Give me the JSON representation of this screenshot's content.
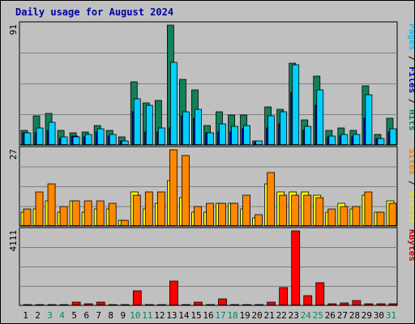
{
  "chart_data": {
    "type": "bar",
    "title": "Daily usage for August 2024",
    "days": [
      "1",
      "2",
      "3",
      "4",
      "5",
      "6",
      "7",
      "8",
      "9",
      "10",
      "11",
      "12",
      "13",
      "14",
      "15",
      "16",
      "17",
      "18",
      "19",
      "20",
      "21",
      "22",
      "23",
      "24",
      "25",
      "26",
      "27",
      "28",
      "29",
      "30",
      "31"
    ],
    "weekend_days": [
      "3",
      "4",
      "10",
      "11",
      "17",
      "18",
      "24",
      "25",
      "31"
    ],
    "panels": [
      {
        "id": "pages_files_hits",
        "max_label": "91",
        "ymax": 91,
        "right_label": [
          {
            "text": "Pages",
            "color": "#00c8ff"
          },
          {
            "text": " / ",
            "color": "#000000"
          },
          {
            "text": "Files",
            "color": "#0000c8"
          },
          {
            "text": " / ",
            "color": "#000000"
          },
          {
            "text": "Hits",
            "color": "#008a5a"
          }
        ],
        "series": [
          {
            "name": "Hits",
            "color": "#12805a",
            "values": [
              11,
              22,
              24,
              11,
              9,
              10,
              15,
              11,
              6,
              48,
              32,
              34,
              91,
              50,
              42,
              15,
              25,
              23,
              23,
              3,
              29,
              27,
              62,
              19,
              52,
              11,
              13,
              11,
              45,
              8,
              20
            ]
          },
          {
            "name": "Files",
            "color": "#0000c8",
            "values": [
              9,
              9,
              11,
              5,
              7,
              6,
              10,
              7,
              3,
              25,
              10,
              10,
              13,
              22,
              20,
              9,
              10,
              10,
              12,
              2,
              13,
              16,
              40,
              11,
              30,
              6,
              7,
              6,
              20,
              5,
              10
            ]
          },
          {
            "name": "Pages",
            "color": "#00d0ff",
            "values": [
              9,
              13,
              17,
              6,
              6,
              8,
              12,
              8,
              3,
              35,
              30,
              13,
              63,
              25,
              27,
              9,
              16,
              14,
              15,
              3,
              22,
              25,
              61,
              14,
              42,
              7,
              8,
              8,
              38,
              5,
              12
            ]
          }
        ]
      },
      {
        "id": "sites_visits",
        "max_label": "27",
        "ymax": 27,
        "right_label": [
          {
            "text": "Sites",
            "color": "#ff8000"
          },
          {
            "text": " / ",
            "color": "#000000"
          },
          {
            "text": "Visits",
            "color": "#e6e600"
          }
        ],
        "series": [
          {
            "name": "Visits",
            "color": "#ffff00",
            "values": [
              5,
              6,
              9,
              5,
              9,
              5,
              6,
              6,
              2,
              12,
              6,
              8,
              16,
              10,
              5,
              5,
              8,
              8,
              6,
              3,
              15,
              12,
              12,
              12,
              11,
              5,
              8,
              6,
              11,
              5,
              9
            ]
          },
          {
            "name": "Sites",
            "color": "#ff8800",
            "values": [
              6,
              12,
              15,
              7,
              9,
              9,
              9,
              8,
              2,
              11,
              12,
              12,
              27,
              25,
              7,
              8,
              8,
              8,
              11,
              4,
              19,
              11,
              11,
              11,
              10,
              6,
              7,
              7,
              12,
              5,
              8
            ]
          }
        ]
      },
      {
        "id": "kbytes",
        "max_label": "4111",
        "ymax": 4111,
        "right_label": [
          {
            "text": "KBytes",
            "color": "#dd0000"
          }
        ],
        "series": [
          {
            "name": "KBytes",
            "color": "#ff0000",
            "values": [
              20,
              30,
              30,
              30,
              200,
              80,
              190,
              30,
              30,
              800,
              40,
              40,
              1350,
              60,
              200,
              60,
              350,
              40,
              40,
              30,
              200,
              980,
              4111,
              530,
              1260,
              100,
              150,
              290,
              110,
              80,
              110
            ]
          }
        ]
      }
    ]
  }
}
